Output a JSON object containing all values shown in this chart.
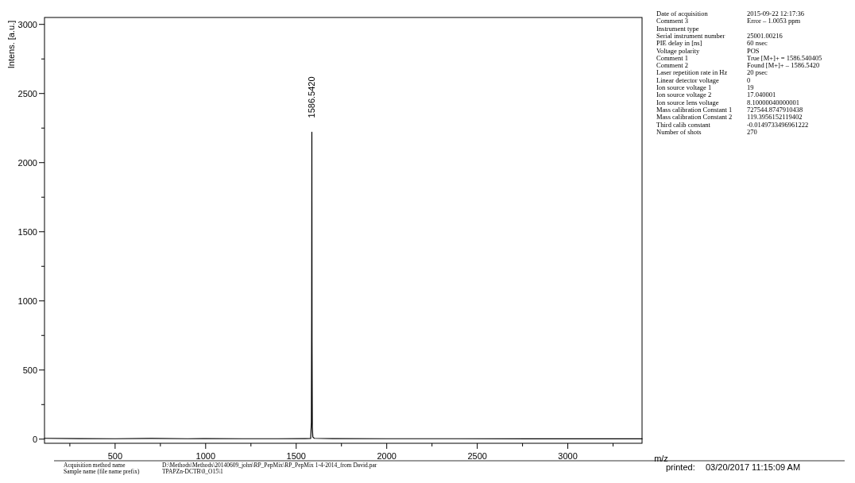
{
  "chart_data": {
    "type": "line",
    "xlabel": "m/z",
    "ylabel": "Intens. [a.u.]",
    "xlim": [
      110,
      3410
    ],
    "ylim": [
      -30,
      3050
    ],
    "xticks": [
      {
        "value": 250,
        "label": null
      },
      500,
      {
        "value": 750,
        "label": null
      },
      1000,
      {
        "value": 1250,
        "label": null
      },
      1500,
      {
        "value": 1750,
        "label": null
      },
      2000,
      {
        "value": 2250,
        "label": null
      },
      2500,
      {
        "value": 2750,
        "label": null
      },
      3000,
      {
        "value": 3250,
        "label": null
      }
    ],
    "yticks": [
      0,
      {
        "value": 250,
        "label": null
      },
      500,
      {
        "value": 750,
        "label": null
      },
      1000,
      {
        "value": 1250,
        "label": null
      },
      1500,
      {
        "value": 1750,
        "label": null
      },
      2000,
      {
        "value": 2250,
        "label": null
      },
      2500,
      {
        "value": 2750,
        "label": null
      },
      3000
    ],
    "series": [
      {
        "color": "#000000",
        "x": [
          110,
          300,
          500,
          700,
          900,
          1000,
          1200,
          1400,
          1550,
          1580,
          1584,
          1585.5,
          1586.54,
          1587.5,
          1589,
          1592,
          1600,
          1700,
          2000,
          2400,
          2800,
          3200,
          3410
        ],
        "values": [
          6,
          4,
          3,
          5,
          3,
          4,
          3,
          3,
          4,
          5,
          120,
          900,
          2220,
          700,
          90,
          15,
          6,
          4,
          3,
          3,
          2,
          2,
          2
        ]
      }
    ],
    "annotations": [
      {
        "text": "1586.5420",
        "x": 1586.54,
        "y": 2220
      },
      "Date of acquisition\t2015-09-22 12:17:36",
      "Comment 3\tError – 1.0053 ppm",
      "Instrument type",
      "Serial instrument number\t25001.00216",
      "PIE delay in [ns]\t60 nsec",
      "Voltage polarity\tPOS",
      "Comment 1\tTrue [M+]+ = 1586.540405",
      "Comment 2\tFound [M+]+ – 1586.5420",
      "Laser repetition rate in Hz\t20 psec",
      "Linear detector voltage\t0",
      "Ion source voltage 1\t19",
      "Ion source voltage 2\t17.040001",
      "Ion source lens voltage\t8.10000040000001",
      "Mass calibration Constant 1\t727544.8747910438",
      "Mass calibration Constant 2\t119.3956152119402",
      "Third calib constant\t-0.0149733496961222",
      "Number of shots\t270",
      "Acquisition method name\tD:\\Methods\\Methods\\20140609_john\\RP_PepMix\\RP_PepMix 1-4-2014_from David.par",
      "Sample name (file name prefix)\tTPAPZn-DCTB\\0_O15\\1",
      "printed:\t03/20/2017 11:15:09 AM"
    ],
    "grid": false
  }
}
